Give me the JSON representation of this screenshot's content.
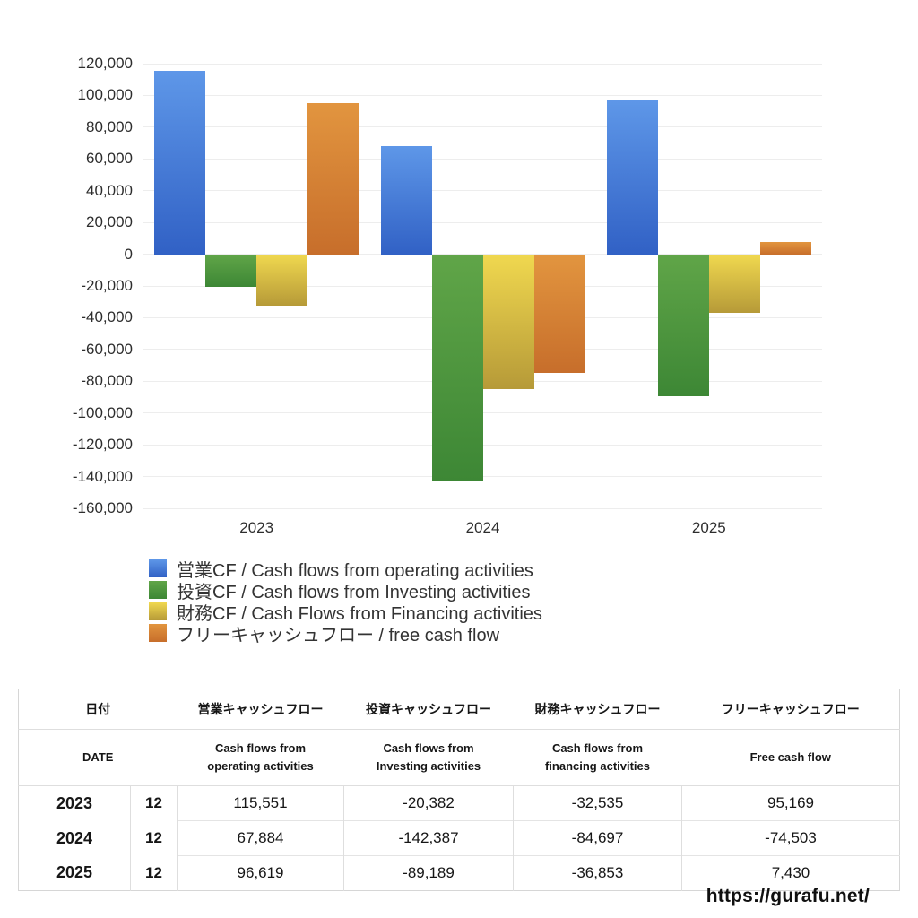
{
  "chart_data": {
    "type": "bar",
    "categories": [
      "2023",
      "2024",
      "2025"
    ],
    "series": [
      {
        "key": "operating",
        "name": "営業CF / Cash flows from operating activities",
        "color_top": "#5e97e8",
        "color_bottom": "#3161c5",
        "values": [
          115551,
          67884,
          96619
        ]
      },
      {
        "key": "investing",
        "name": "投資CF / Cash flows from Investing activities",
        "color_top": "#60a548",
        "color_bottom": "#3d8735",
        "values": [
          -20382,
          -142387,
          -89189
        ]
      },
      {
        "key": "financing",
        "name": "財務CF / Cash Flows from Financing activities",
        "color_top": "#f0d84f",
        "color_bottom": "#b69a38",
        "values": [
          -32535,
          -84697,
          -36853
        ]
      },
      {
        "key": "freecashflow",
        "name": "フリーキャッシュフロー / free cash flow",
        "color_top": "#e2953f",
        "color_bottom": "#c76e2b",
        "values": [
          95169,
          -74503,
          7430
        ]
      }
    ],
    "ylim": [
      -160000,
      120000
    ],
    "ytick_step": 20000,
    "ytick_labels": [
      "120,000",
      "100,000",
      "80,000",
      "60,000",
      "40,000",
      "20,000",
      "0",
      "-20,000",
      "-40,000",
      "-60,000",
      "-80,000",
      "-100,000",
      "-120,000",
      "-140,000",
      "-160,000"
    ],
    "grid": true,
    "legend_position": "bottom-left",
    "title": "",
    "xlabel": "",
    "ylabel": ""
  },
  "table": {
    "date_header_jp": "日付",
    "date_header_en": "DATE",
    "col_headers_jp": [
      "営業キャッシュフロー",
      "投資キャッシュフロー",
      "財務キャッシュフロー",
      "フリーキャッシュフロー"
    ],
    "col_headers_en": [
      "Cash flows from operating activities",
      "Cash flows from Investing activities",
      "Cash flows from financing activities",
      "Free cash flow"
    ],
    "col_keys": [
      "operating",
      "investing",
      "financing",
      "freecashflow"
    ],
    "rows": [
      {
        "year": "2023",
        "month": "12",
        "values": [
          "115,551",
          "-20,382",
          "-32,535",
          "95,169"
        ]
      },
      {
        "year": "2024",
        "month": "12",
        "values": [
          "67,884",
          "-142,387",
          "-84,697",
          "-74,503"
        ]
      },
      {
        "year": "2025",
        "month": "12",
        "values": [
          "96,619",
          "-89,189",
          "-36,853",
          "7,430"
        ]
      }
    ]
  },
  "footer": {
    "url": "https://gurafu.net/"
  },
  "colors": {
    "negative_text": "#c9473e",
    "grid_line": "#ededed",
    "table_border": "#dedede",
    "axis_text": "#2d2d2d",
    "body_text": "#161616"
  }
}
